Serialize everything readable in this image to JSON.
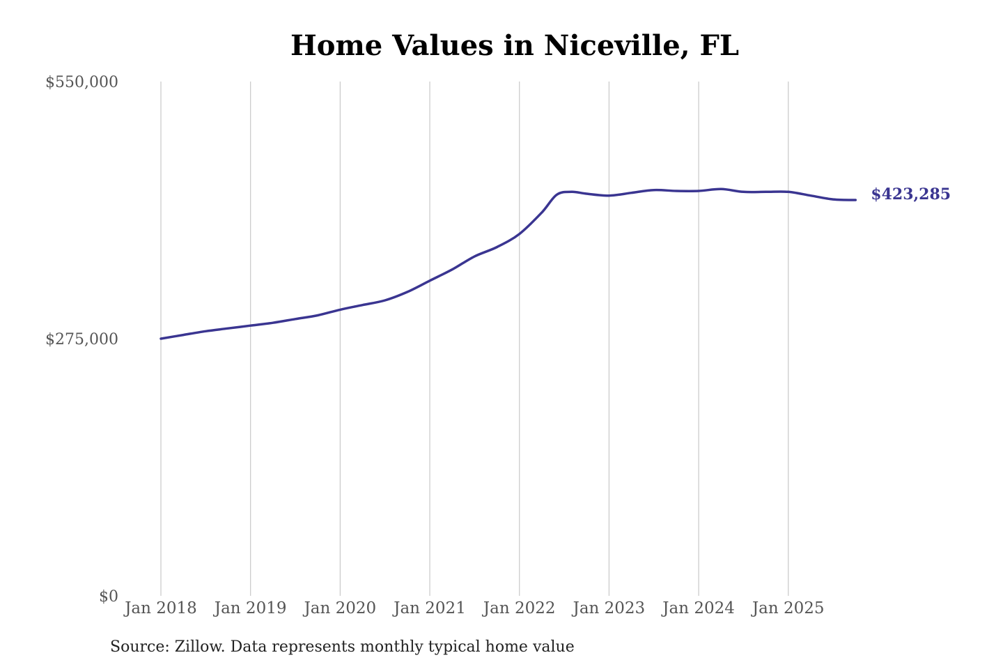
{
  "chart_data": {
    "type": "line",
    "title": "Home Values in Niceville, FL",
    "xlabel": "",
    "ylabel": "",
    "ylim": [
      0,
      550000
    ],
    "y_ticks": [
      "$550,000",
      "$275,000",
      "$0"
    ],
    "y_tick_values": [
      550000,
      275000,
      0
    ],
    "x_ticks": [
      "Jan 2018",
      "Jan 2019",
      "Jan 2020",
      "Jan 2021",
      "Jan 2022",
      "Jan 2023",
      "Jan 2024",
      "Jan 2025"
    ],
    "x_tick_values": [
      2018,
      2019,
      2020,
      2021,
      2022,
      2023,
      2024,
      2025
    ],
    "xlim": [
      2018,
      2025.88
    ],
    "grid": "vertical",
    "line_color": "#3a3591",
    "series": [
      {
        "values_by_month": [
          {
            "x": "2018-01",
            "y": 275000
          },
          {
            "x": "2018-04",
            "y": 279000
          },
          {
            "x": "2018-07",
            "y": 283000
          },
          {
            "x": "2018-10",
            "y": 286000
          },
          {
            "x": "2019-01",
            "y": 289000
          },
          {
            "x": "2019-04",
            "y": 292000
          },
          {
            "x": "2019-07",
            "y": 296000
          },
          {
            "x": "2019-10",
            "y": 300000
          },
          {
            "x": "2020-01",
            "y": 306000
          },
          {
            "x": "2020-04",
            "y": 311000
          },
          {
            "x": "2020-07",
            "y": 316000
          },
          {
            "x": "2020-10",
            "y": 325000
          },
          {
            "x": "2021-01",
            "y": 337000
          },
          {
            "x": "2021-04",
            "y": 349000
          },
          {
            "x": "2021-07",
            "y": 363000
          },
          {
            "x": "2021-10",
            "y": 373000
          },
          {
            "x": "2022-01",
            "y": 387000
          },
          {
            "x": "2022-04",
            "y": 410000
          },
          {
            "x": "2022-06",
            "y": 429000
          },
          {
            "x": "2022-08",
            "y": 432000
          },
          {
            "x": "2022-10",
            "y": 430000
          },
          {
            "x": "2023-01",
            "y": 428000
          },
          {
            "x": "2023-04",
            "y": 431000
          },
          {
            "x": "2023-07",
            "y": 434000
          },
          {
            "x": "2023-10",
            "y": 433000
          },
          {
            "x": "2024-01",
            "y": 433000
          },
          {
            "x": "2024-04",
            "y": 435000
          },
          {
            "x": "2024-07",
            "y": 432000
          },
          {
            "x": "2024-10",
            "y": 432000
          },
          {
            "x": "2025-01",
            "y": 432000
          },
          {
            "x": "2025-04",
            "y": 428000
          },
          {
            "x": "2025-07",
            "y": 424000
          },
          {
            "x": "2025-10",
            "y": 423285
          }
        ]
      }
    ],
    "end_label": "$423,285"
  },
  "footer": {
    "source": "Source: Zillow. Data represents monthly typical home value"
  }
}
